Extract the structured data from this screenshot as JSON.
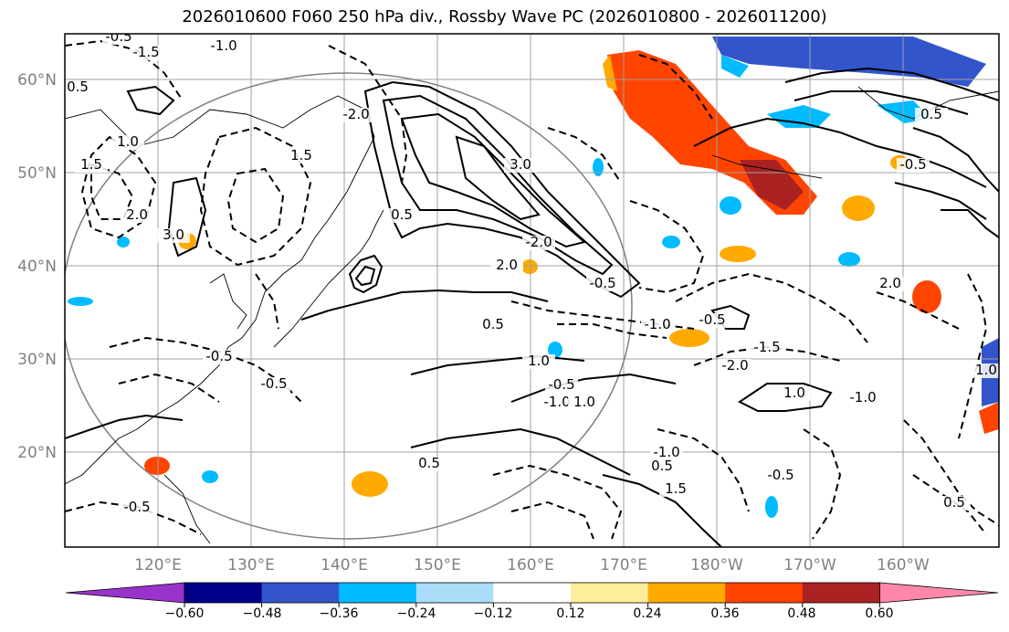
{
  "title": "2026010600 F060 250 hPa div., Rossby Wave PC (2026010800 - 2026011200)",
  "map": {
    "lon_ticks": [
      "120°E",
      "130°E",
      "140°E",
      "150°E",
      "160°E",
      "170°E",
      "180°W",
      "170°W",
      "160°W"
    ],
    "lat_ticks": [
      "60°N",
      "50°N",
      "40°N",
      "30°N",
      "20°N"
    ],
    "gridlines": true,
    "contour_labels": [
      "-0.5",
      "-1.5",
      "-1.0",
      "0.5",
      "1.0",
      "1.5",
      "2.0",
      "3.0",
      "-2.0",
      "-0.5",
      "1.5",
      "0.5",
      "3.0",
      "2.0",
      "-2.0",
      "1.0",
      "-1.0",
      "-0.5",
      "0.5",
      "-0.5",
      "1.0",
      "-0.5",
      "0.5",
      "-1.0",
      "0.5",
      "-0.5",
      "1.5",
      "-1.0",
      "1.0",
      "-1.5",
      "-2.0",
      "0.5",
      "-0.5",
      "2.0",
      "-1.0",
      "0.5",
      "-0.5",
      "1.0",
      "-0.5"
    ]
  },
  "colorbar": {
    "ticks": [
      "−0.60",
      "−0.48",
      "−0.36",
      "−0.24",
      "−0.12",
      "0.12",
      "0.24",
      "0.36",
      "0.48",
      "0.60"
    ],
    "colors": [
      "#9933cc",
      "#000088",
      "#3355cc",
      "#00bbff",
      "#aaddf8",
      "#ffffff",
      "#ffee99",
      "#ffaa00",
      "#ff4400",
      "#aa2222",
      "#ff88aa"
    ]
  }
}
